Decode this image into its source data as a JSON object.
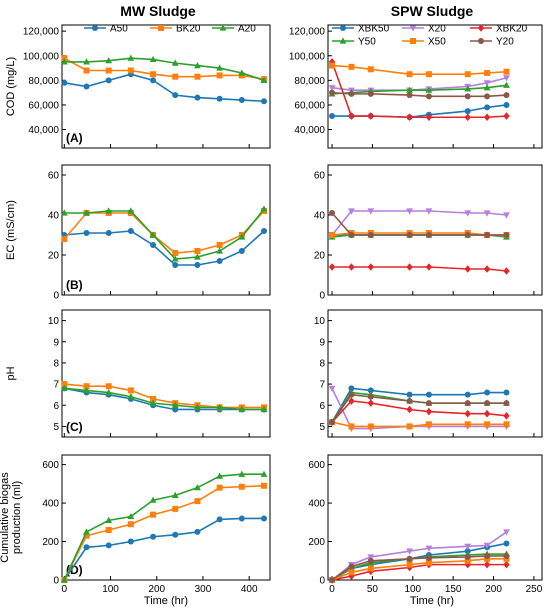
{
  "column_titles": {
    "left": "MW Sludge",
    "right": "SPW Sludge"
  },
  "x_label": "Time (hr)",
  "left_x_ticks": [
    0,
    100,
    200,
    300,
    400
  ],
  "right_x_ticks": [
    0,
    50,
    100,
    150,
    200,
    250
  ],
  "legends": {
    "mw": [
      "A50",
      "BK20",
      "A20"
    ],
    "spw": [
      "XBK50",
      "X20",
      "XBK20",
      "Y50",
      "X50",
      "Y20"
    ]
  },
  "colors": {
    "A50": "#1f77b4",
    "BK20": "#ff7f0e",
    "A20": "#2ca02c",
    "XBK50": "#1f77b4",
    "X20": "#b57fdd",
    "XBK20": "#e5262c",
    "Y50": "#2ca02c",
    "X50": "#ff7f0e",
    "Y20": "#8c564b"
  },
  "markers": {
    "A50": "circle",
    "BK20": "square",
    "A20": "triangle-up",
    "XBK50": "circle",
    "X20": "triangle-down",
    "XBK20": "diamond",
    "Y50": "triangle-up",
    "X50": "square",
    "Y20": "circle"
  },
  "chart_data": [
    {
      "type": "line",
      "id": "A-MW",
      "panel_label": "(A)",
      "ylabel": "COD (mg/L)",
      "yticks": [
        40000,
        60000,
        80000,
        100000,
        120000
      ],
      "ytick_labels": [
        "40,000",
        "60,000",
        "80,000",
        "100,000",
        "120,000"
      ],
      "xlim": [
        -5,
        445
      ],
      "ylim": [
        25000,
        125000
      ],
      "series": [
        {
          "name": "A50",
          "x": [
            0,
            48,
            96,
            144,
            192,
            240,
            288,
            336,
            384,
            432
          ],
          "values": [
            78000,
            75000,
            80000,
            85000,
            80000,
            68000,
            66000,
            65000,
            64000,
            63000
          ]
        },
        {
          "name": "BK20",
          "x": [
            0,
            48,
            96,
            144,
            192,
            240,
            288,
            336,
            384,
            432
          ],
          "values": [
            98000,
            88000,
            88000,
            88000,
            85000,
            83000,
            83000,
            84000,
            84000,
            81000
          ]
        },
        {
          "name": "A20",
          "x": [
            0,
            48,
            96,
            144,
            192,
            240,
            288,
            336,
            384,
            432
          ],
          "values": [
            95000,
            95000,
            96000,
            98000,
            97000,
            94000,
            92000,
            90000,
            86000,
            80000
          ]
        }
      ]
    },
    {
      "type": "line",
      "id": "A-SPW",
      "ylabel": "",
      "yticks": [
        40000,
        60000,
        80000,
        100000,
        120000
      ],
      "ytick_labels": [
        "40,000",
        "60,000",
        "80,000",
        "100,000",
        "120,000"
      ],
      "xlim": [
        -5,
        260
      ],
      "ylim": [
        25000,
        125000
      ],
      "series": [
        {
          "name": "XBK50",
          "x": [
            0,
            24,
            48,
            96,
            120,
            168,
            192,
            216
          ],
          "values": [
            51000,
            51000,
            51000,
            50000,
            52000,
            55000,
            58000,
            60000
          ]
        },
        {
          "name": "X20",
          "x": [
            0,
            24,
            48,
            96,
            120,
            168,
            192,
            216
          ],
          "values": [
            74000,
            72000,
            72000,
            72000,
            73000,
            75000,
            78000,
            82000
          ]
        },
        {
          "name": "XBK20",
          "x": [
            0,
            24,
            48,
            96,
            120,
            168,
            192,
            216
          ],
          "values": [
            95000,
            51000,
            51000,
            50000,
            50000,
            50000,
            50000,
            51000
          ]
        },
        {
          "name": "Y50",
          "x": [
            0,
            24,
            48,
            96,
            120,
            168,
            192,
            216
          ],
          "values": [
            69000,
            70000,
            71000,
            72000,
            72000,
            73000,
            74000,
            76000
          ]
        },
        {
          "name": "X50",
          "x": [
            0,
            24,
            48,
            96,
            120,
            168,
            192,
            216
          ],
          "values": [
            92000,
            91000,
            89000,
            85000,
            85000,
            85000,
            86000,
            87000
          ]
        },
        {
          "name": "Y20",
          "x": [
            0,
            24,
            48,
            96,
            120,
            168,
            192,
            216
          ],
          "values": [
            70000,
            69000,
            69000,
            68000,
            67000,
            67000,
            67000,
            68000
          ]
        }
      ]
    },
    {
      "type": "line",
      "id": "B-MW",
      "panel_label": "(B)",
      "ylabel": "EC (mS/cm)",
      "yticks": [
        0,
        20,
        40,
        60
      ],
      "ytick_labels": [
        "0",
        "20",
        "40",
        "60"
      ],
      "xlim": [
        -5,
        445
      ],
      "ylim": [
        0,
        65
      ],
      "series": [
        {
          "name": "A50",
          "x": [
            0,
            48,
            96,
            144,
            192,
            240,
            288,
            336,
            384,
            432
          ],
          "values": [
            30,
            31,
            31,
            32,
            25,
            15,
            15,
            17,
            22,
            32
          ]
        },
        {
          "name": "BK20",
          "x": [
            0,
            48,
            96,
            144,
            192,
            240,
            288,
            336,
            384,
            432
          ],
          "values": [
            28,
            41,
            41,
            41,
            30,
            21,
            22,
            25,
            30,
            42
          ]
        },
        {
          "name": "A20",
          "x": [
            0,
            48,
            96,
            144,
            192,
            240,
            288,
            336,
            384,
            432
          ],
          "values": [
            41,
            41,
            42,
            42,
            30,
            18,
            19,
            22,
            29,
            43
          ]
        }
      ]
    },
    {
      "type": "line",
      "id": "B-SPW",
      "ylabel": "",
      "yticks": [
        0,
        20,
        40,
        60
      ],
      "ytick_labels": [
        "0",
        "20",
        "40",
        "60"
      ],
      "xlim": [
        -5,
        260
      ],
      "ylim": [
        0,
        65
      ],
      "series": [
        {
          "name": "XBK50",
          "x": [
            0,
            24,
            48,
            96,
            120,
            168,
            192,
            216
          ],
          "values": [
            30,
            30,
            30,
            30,
            30,
            30,
            30,
            30
          ]
        },
        {
          "name": "X20",
          "x": [
            0,
            24,
            48,
            96,
            120,
            168,
            192,
            216
          ],
          "values": [
            30,
            42,
            42,
            42,
            42,
            41,
            41,
            40
          ]
        },
        {
          "name": "XBK20",
          "x": [
            0,
            24,
            48,
            96,
            120,
            168,
            192,
            216
          ],
          "values": [
            14,
            14,
            14,
            14,
            14,
            13,
            13,
            12
          ]
        },
        {
          "name": "Y50",
          "x": [
            0,
            24,
            48,
            96,
            120,
            168,
            192,
            216
          ],
          "values": [
            29,
            30,
            30,
            30,
            30,
            30,
            30,
            29
          ]
        },
        {
          "name": "X50",
          "x": [
            0,
            24,
            48,
            96,
            120,
            168,
            192,
            216
          ],
          "values": [
            30,
            31,
            31,
            31,
            31,
            31,
            30,
            30
          ]
        },
        {
          "name": "Y20",
          "x": [
            0,
            24,
            48,
            96,
            120,
            168,
            192,
            216
          ],
          "values": [
            41,
            30,
            30,
            30,
            30,
            30,
            30,
            30
          ]
        }
      ]
    },
    {
      "type": "line",
      "id": "C-MW",
      "panel_label": "(C)",
      "ylabel": "pH",
      "yticks": [
        5,
        6,
        7,
        8,
        9,
        10
      ],
      "ytick_labels": [
        "5",
        "6",
        "7",
        "8",
        "9",
        "10"
      ],
      "xlim": [
        -5,
        445
      ],
      "ylim": [
        4.5,
        10.5
      ],
      "series": [
        {
          "name": "A50",
          "x": [
            0,
            48,
            96,
            144,
            192,
            240,
            288,
            336,
            384,
            432
          ],
          "values": [
            6.8,
            6.6,
            6.5,
            6.3,
            6.0,
            5.8,
            5.8,
            5.8,
            5.8,
            5.8
          ]
        },
        {
          "name": "BK20",
          "x": [
            0,
            48,
            96,
            144,
            192,
            240,
            288,
            336,
            384,
            432
          ],
          "values": [
            7.0,
            6.9,
            6.9,
            6.7,
            6.3,
            6.1,
            6.0,
            5.9,
            5.9,
            5.9
          ]
        },
        {
          "name": "A20",
          "x": [
            0,
            48,
            96,
            144,
            192,
            240,
            288,
            336,
            384,
            432
          ],
          "values": [
            6.8,
            6.7,
            6.6,
            6.4,
            6.1,
            6.0,
            5.9,
            5.9,
            5.8,
            5.8
          ]
        }
      ]
    },
    {
      "type": "line",
      "id": "C-SPW",
      "ylabel": "",
      "yticks": [
        5,
        6,
        7,
        8,
        9,
        10
      ],
      "ytick_labels": [
        "5",
        "6",
        "7",
        "8",
        "9",
        "10"
      ],
      "xlim": [
        -5,
        260
      ],
      "ylim": [
        4.5,
        10.5
      ],
      "series": [
        {
          "name": "XBK50",
          "x": [
            0,
            24,
            48,
            96,
            120,
            168,
            192,
            216
          ],
          "values": [
            5.2,
            6.8,
            6.7,
            6.5,
            6.5,
            6.5,
            6.6,
            6.6
          ]
        },
        {
          "name": "X20",
          "x": [
            0,
            24,
            48,
            96,
            120,
            168,
            192,
            216
          ],
          "values": [
            6.8,
            4.9,
            4.9,
            5.0,
            5.0,
            5.0,
            5.0,
            5.0
          ]
        },
        {
          "name": "XBK20",
          "x": [
            0,
            24,
            48,
            96,
            120,
            168,
            192,
            216
          ],
          "values": [
            5.2,
            6.2,
            6.1,
            5.8,
            5.7,
            5.6,
            5.6,
            5.5
          ]
        },
        {
          "name": "Y50",
          "x": [
            0,
            24,
            48,
            96,
            120,
            168,
            192,
            216
          ],
          "values": [
            5.2,
            6.6,
            6.5,
            6.2,
            6.1,
            6.1,
            6.1,
            6.1
          ]
        },
        {
          "name": "X50",
          "x": [
            0,
            24,
            48,
            96,
            120,
            168,
            192,
            216
          ],
          "values": [
            5.2,
            5.0,
            5.0,
            5.0,
            5.1,
            5.1,
            5.1,
            5.1
          ]
        },
        {
          "name": "Y20",
          "x": [
            0,
            24,
            48,
            96,
            120,
            168,
            192,
            216
          ],
          "values": [
            5.2,
            6.5,
            6.4,
            6.2,
            6.1,
            6.1,
            6.1,
            6.1
          ]
        }
      ]
    },
    {
      "type": "line",
      "id": "D-MW",
      "panel_label": "(D)",
      "ylabel": "Cumulative biogas production (ml)",
      "ylabel_lines": [
        "Cumulative biogas",
        "production (ml)"
      ],
      "yticks": [
        0,
        200,
        400,
        600
      ],
      "ytick_labels": [
        "0",
        "200",
        "400",
        "600"
      ],
      "xlim": [
        -5,
        445
      ],
      "ylim": [
        0,
        650
      ],
      "series": [
        {
          "name": "A50",
          "x": [
            0,
            48,
            96,
            144,
            192,
            240,
            288,
            336,
            384,
            432
          ],
          "values": [
            0,
            170,
            180,
            200,
            225,
            235,
            250,
            315,
            320,
            320
          ]
        },
        {
          "name": "BK20",
          "x": [
            0,
            48,
            96,
            144,
            192,
            240,
            288,
            336,
            384,
            432
          ],
          "values": [
            0,
            230,
            260,
            290,
            340,
            370,
            410,
            480,
            485,
            490
          ]
        },
        {
          "name": "A20",
          "x": [
            0,
            48,
            96,
            144,
            192,
            240,
            288,
            336,
            384,
            432
          ],
          "values": [
            0,
            250,
            310,
            330,
            415,
            440,
            480,
            540,
            550,
            550
          ]
        }
      ]
    },
    {
      "type": "line",
      "id": "D-SPW",
      "ylabel": "",
      "yticks": [
        0,
        200,
        400,
        600
      ],
      "ytick_labels": [
        "0",
        "200",
        "400",
        "600"
      ],
      "xlim": [
        -5,
        260
      ],
      "ylim": [
        0,
        650
      ],
      "series": [
        {
          "name": "XBK50",
          "x": [
            0,
            24,
            48,
            96,
            120,
            168,
            192,
            216
          ],
          "values": [
            0,
            60,
            80,
            110,
            130,
            150,
            170,
            190
          ]
        },
        {
          "name": "X20",
          "x": [
            0,
            24,
            48,
            96,
            120,
            168,
            192,
            216
          ],
          "values": [
            0,
            80,
            120,
            150,
            165,
            175,
            180,
            250
          ]
        },
        {
          "name": "XBK20",
          "x": [
            0,
            24,
            48,
            96,
            120,
            168,
            192,
            216
          ],
          "values": [
            0,
            20,
            45,
            65,
            80,
            80,
            80,
            80
          ]
        },
        {
          "name": "Y50",
          "x": [
            0,
            24,
            48,
            96,
            120,
            168,
            192,
            216
          ],
          "values": [
            0,
            60,
            90,
            110,
            120,
            130,
            135,
            135
          ]
        },
        {
          "name": "X50",
          "x": [
            0,
            24,
            48,
            96,
            120,
            168,
            192,
            216
          ],
          "values": [
            0,
            40,
            60,
            80,
            90,
            100,
            110,
            110
          ]
        },
        {
          "name": "Y20",
          "x": [
            0,
            24,
            48,
            96,
            120,
            168,
            192,
            216
          ],
          "values": [
            0,
            70,
            100,
            110,
            115,
            120,
            125,
            125
          ]
        }
      ]
    }
  ]
}
